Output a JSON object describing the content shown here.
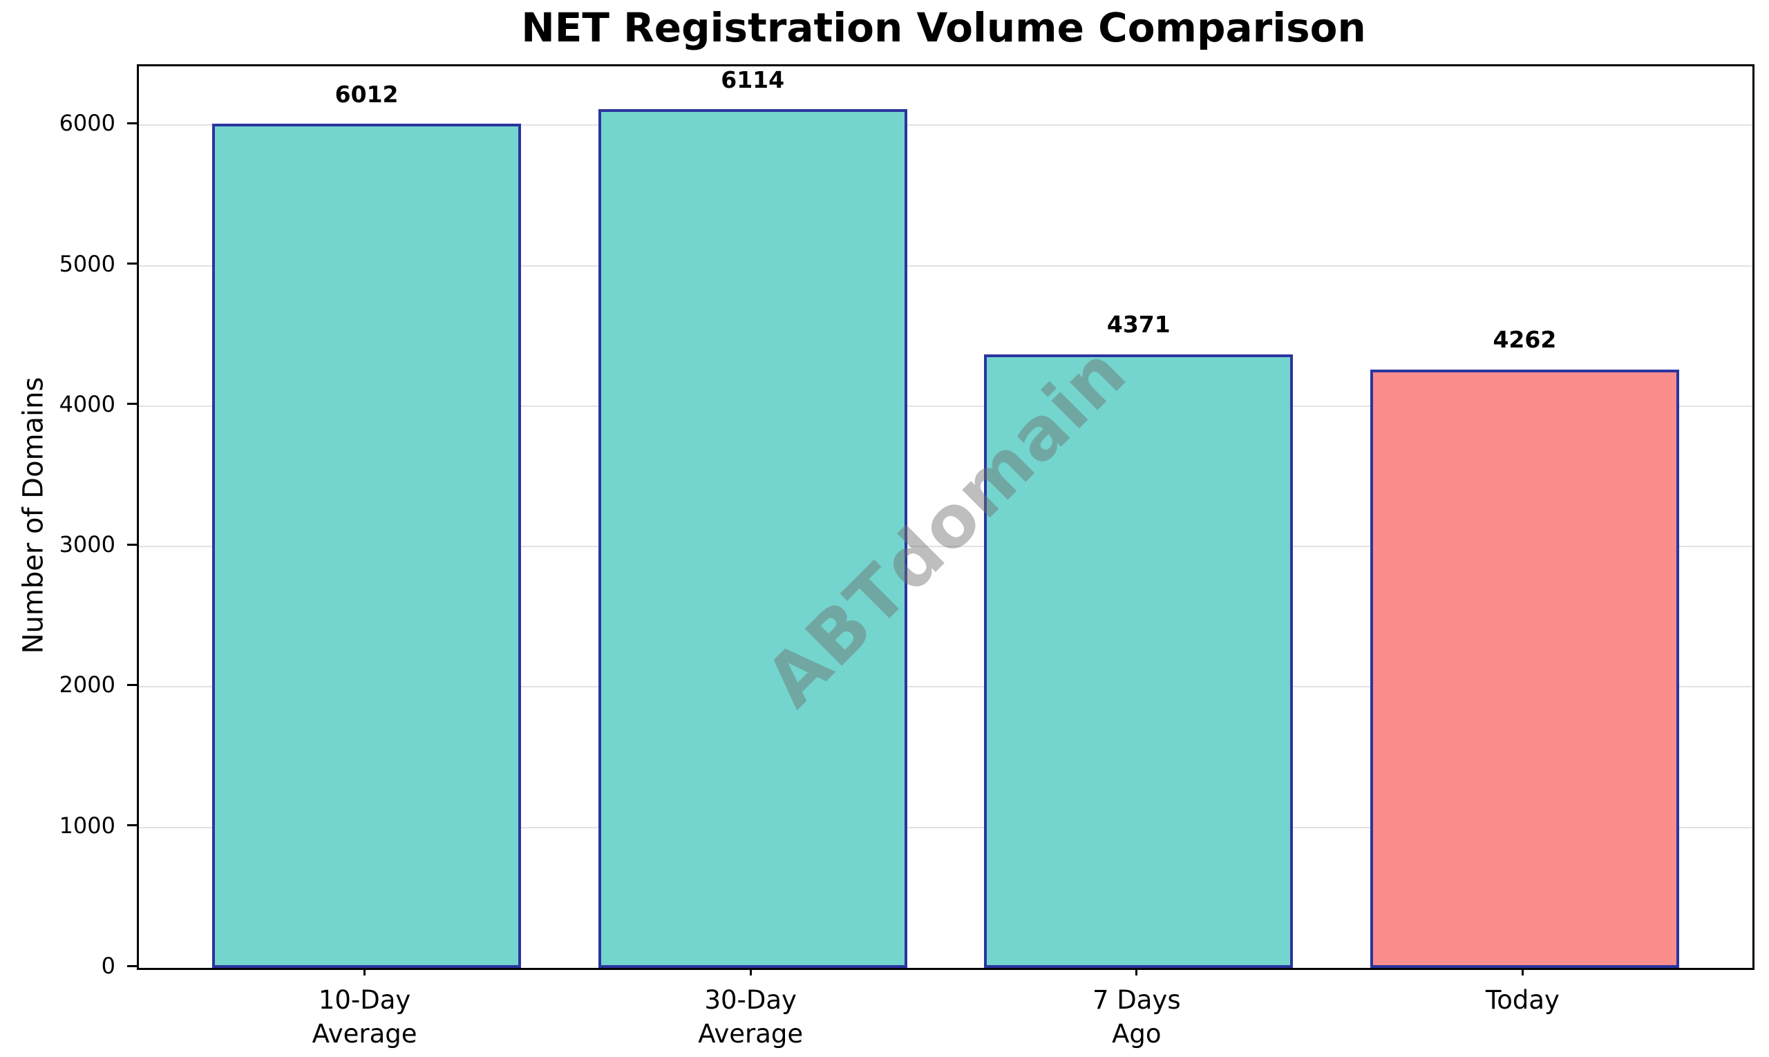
{
  "chart_data": {
    "type": "bar",
    "title": "NET Registration Volume Comparison",
    "xlabel": "",
    "ylabel": "Number of Domains",
    "categories": [
      "10-Day\nAverage",
      "30-Day\nAverage",
      "7 Days\nAgo",
      "Today"
    ],
    "values": [
      6012,
      6114,
      4371,
      4262
    ],
    "value_labels": [
      "6012",
      "6114",
      "4371",
      "4262"
    ],
    "ytick_labels": [
      "0",
      "1000",
      "2000",
      "3000",
      "4000",
      "5000",
      "6000"
    ],
    "yticks": [
      0,
      1000,
      2000,
      3000,
      4000,
      5000,
      6000
    ],
    "ylim": [
      0,
      6420
    ],
    "grid": true,
    "legend": null,
    "watermark": "ABTdomain",
    "colors": {
      "bar_fill": [
        "#74D5CE",
        "#74D5CE",
        "#74D5CE",
        "#FC8D8D"
      ],
      "bar_edge": "#2B359F",
      "gridline": "#e2e2e2",
      "axis": "#000000",
      "text": "#000000",
      "background": "#ffffff"
    }
  }
}
